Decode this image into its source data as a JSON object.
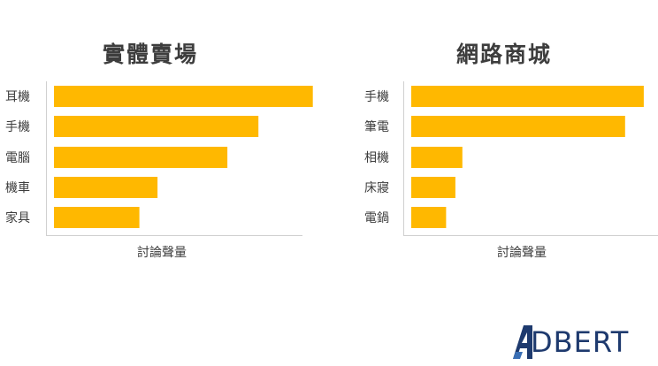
{
  "charts": [
    {
      "title": "實體賣場"
    },
    {
      "title": "網路商城"
    }
  ],
  "chart_data": [
    {
      "type": "bar",
      "orientation": "horizontal",
      "title": "實體賣場",
      "xlabel": "討論聲量",
      "ylabel": "",
      "categories": [
        "耳機",
        "手機",
        "電腦",
        "機車",
        "家具"
      ],
      "values": [
        100,
        79,
        67,
        40,
        33
      ],
      "xlim": [
        0,
        123
      ],
      "grid": false,
      "color": "#FFB800"
    },
    {
      "type": "bar",
      "orientation": "horizontal",
      "title": "網路商城",
      "xlabel": "討論聲量",
      "ylabel": "",
      "categories": [
        "手機",
        "筆電",
        "相機",
        "床寢",
        "電鍋"
      ],
      "values": [
        100,
        92,
        22,
        19,
        15
      ],
      "xlim": [
        0,
        140
      ],
      "grid": false,
      "color": "#FFB800"
    }
  ],
  "logo": {
    "text": "DBERT",
    "full": "ADBERT",
    "color": "#1E3A6E"
  }
}
